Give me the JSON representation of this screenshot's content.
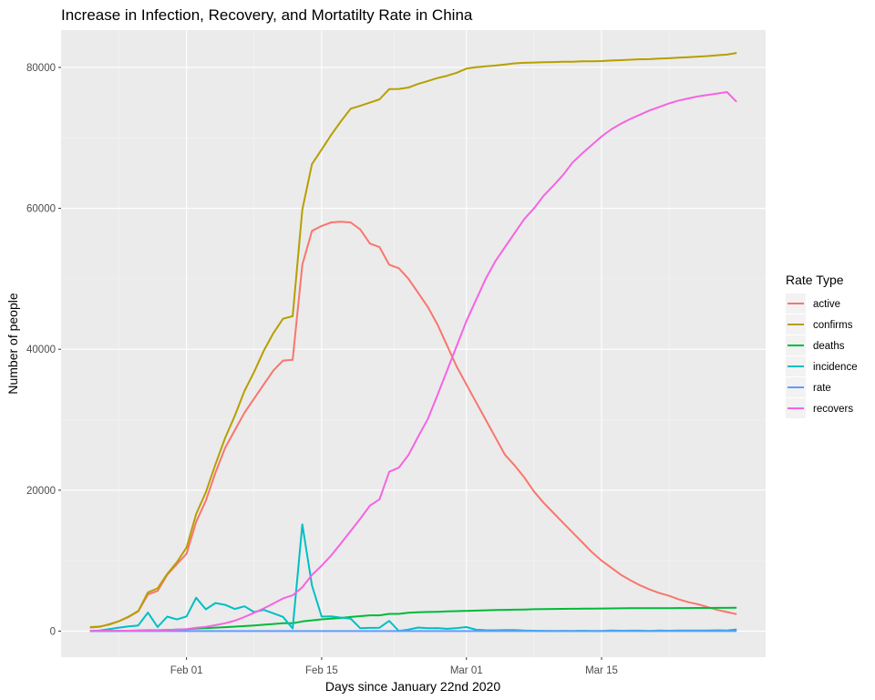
{
  "chart_data": {
    "type": "line",
    "title": "Increase in Infection, Recovery, and Mortatilty Rate in China",
    "xlabel": "Days since January 22nd 2020",
    "ylabel": "Number of people",
    "x_start_date": "2020-01-22",
    "x_ticks": [
      {
        "day": 10,
        "label": "Feb 01"
      },
      {
        "day": 24,
        "label": "Feb 15"
      },
      {
        "day": 39,
        "label": "Mar 01"
      },
      {
        "day": 53,
        "label": "Mar 15"
      }
    ],
    "xlim": [
      -3,
      70
    ],
    "y_ticks": [
      0,
      20000,
      40000,
      60000,
      80000
    ],
    "ylim": [
      -3700,
      85300
    ],
    "grid": true,
    "legend": {
      "title": "Rate Type",
      "position": "right",
      "entries": [
        "active",
        "confirms",
        "deaths",
        "incidence",
        "rate",
        "recovers"
      ]
    },
    "colors": {
      "active": "#F8766D",
      "confirms": "#B79F00",
      "deaths": "#00BA38",
      "incidence": "#00BFC4",
      "rate": "#619CFF",
      "recovers": "#F564E3",
      "panel": "#EBEBEB",
      "grid_major": "#FFFFFF",
      "grid_minor": "#F5F5F5"
    },
    "x": [
      0,
      1,
      2,
      3,
      4,
      5,
      6,
      7,
      8,
      9,
      10,
      11,
      12,
      13,
      14,
      15,
      16,
      17,
      18,
      19,
      20,
      21,
      22,
      23,
      24,
      25,
      26,
      27,
      28,
      29,
      30,
      31,
      32,
      33,
      34,
      35,
      36,
      37,
      38,
      39,
      40,
      41,
      42,
      43,
      44,
      45,
      46,
      47,
      48,
      49,
      50,
      51,
      52,
      53,
      54,
      55,
      56,
      57,
      58,
      59,
      60,
      61,
      62,
      63,
      64,
      65,
      66,
      67
    ],
    "series": [
      {
        "name": "active",
        "values": [
          503,
          595,
          1000,
          1400,
          2000,
          2800,
          5200,
          5700,
          8000,
          9500,
          11000,
          15500,
          18500,
          22500,
          26000,
          28500,
          31000,
          33000,
          35000,
          37000,
          38400,
          38500,
          52000,
          56800,
          57500,
          58000,
          58100,
          58000,
          57000,
          55000,
          54500,
          52000,
          51500,
          50000,
          48000,
          46000,
          43500,
          40500,
          37500,
          35000,
          32500,
          30000,
          27500,
          25000,
          23500,
          21800,
          19800,
          18200,
          16800,
          15400,
          14000,
          12600,
          11200,
          10000,
          9000,
          8000,
          7200,
          6500,
          5900,
          5400,
          5000,
          4500,
          4100,
          3800,
          3400,
          3000,
          2700,
          2400
        ]
      },
      {
        "name": "confirms",
        "values": [
          571,
          643,
          918,
          1405,
          2062,
          2863,
          5494,
          6070,
          8124,
          9783,
          11871,
          16607,
          19693,
          23680,
          27409,
          30553,
          34075,
          36778,
          39790,
          42306,
          44327,
          44699,
          59832,
          66292,
          68347,
          70446,
          72364,
          74139,
          74546,
          74999,
          75472,
          76922,
          76938,
          77152,
          77660,
          78065,
          78498,
          78824,
          79251,
          79826,
          80026,
          80151,
          80271,
          80422,
          80573,
          80652,
          80699,
          80735,
          80757,
          80793,
          80813,
          80859,
          80882,
          80903,
          80981,
          81035,
          81098,
          81163,
          81171,
          81249,
          81306,
          81382,
          81463,
          81538,
          81614,
          81735,
          81818,
          82048
        ]
      },
      {
        "name": "deaths",
        "values": [
          17,
          18,
          26,
          42,
          56,
          82,
          131,
          133,
          171,
          213,
          259,
          361,
          425,
          490,
          562,
          632,
          717,
          804,
          904,
          1011,
          1112,
          1117,
          1369,
          1521,
          1663,
          1766,
          1864,
          2003,
          2116,
          2238,
          2238,
          2443,
          2445,
          2595,
          2665,
          2717,
          2746,
          2790,
          2837,
          2872,
          2914,
          2947,
          2983,
          3015,
          3044,
          3072,
          3100,
          3123,
          3139,
          3161,
          3172,
          3180,
          3194,
          3204,
          3218,
          3231,
          3242,
          3249,
          3253,
          3259,
          3265,
          3270,
          3276,
          3282,
          3288,
          3294,
          3300,
          3305
        ]
      },
      {
        "name": "incidence",
        "values": [
          0,
          72,
          275,
          487,
          657,
          801,
          2631,
          576,
          2054,
          1659,
          2088,
          4736,
          3086,
          3987,
          3729,
          3144,
          3522,
          2703,
          3012,
          2516,
          2021,
          372,
          15133,
          6460,
          2055,
          2099,
          1918,
          1775,
          407,
          453,
          473,
          1450,
          16,
          214,
          508,
          405,
          433,
          326,
          427,
          575,
          200,
          125,
          120,
          151,
          151,
          79,
          47,
          36,
          22,
          36,
          20,
          46,
          23,
          21,
          78,
          54,
          63,
          65,
          8,
          78,
          57,
          76,
          81,
          75,
          76,
          121,
          83,
          230
        ]
      },
      {
        "name": "rate",
        "values": [
          3,
          3,
          3,
          3,
          3,
          3,
          3,
          3,
          3,
          3,
          3,
          3,
          3,
          3,
          3,
          3,
          3,
          3,
          3,
          3,
          3,
          3,
          3,
          3,
          3,
          3,
          3,
          3,
          3,
          3,
          3,
          3,
          3,
          3,
          3,
          3,
          3,
          3,
          3,
          3,
          3,
          3,
          3,
          3,
          3,
          3,
          3,
          3,
          3,
          3,
          3,
          3,
          3,
          3,
          3,
          3,
          3,
          3,
          3,
          3,
          3,
          3,
          3,
          3,
          3,
          3,
          3,
          3
        ]
      },
      {
        "name": "recovers",
        "values": [
          28,
          30,
          36,
          39,
          49,
          58,
          101,
          120,
          135,
          214,
          275,
          463,
          614,
          843,
          1115,
          1477,
          1999,
          2596,
          3219,
          3918,
          4636,
          5082,
          6217,
          7973,
          9294,
          10748,
          12455,
          14199,
          15952,
          17800,
          18700,
          22600,
          23200,
          25000,
          27600,
          30100,
          33500,
          37000,
          40500,
          44000,
          47000,
          50000,
          52500,
          54500,
          56500,
          58500,
          60000,
          61800,
          63200,
          64700,
          66500,
          67800,
          69000,
          70200,
          71200,
          72000,
          72700,
          73300,
          73900,
          74400,
          74900,
          75300,
          75600,
          75900,
          76100,
          76300,
          76500,
          75100
        ]
      }
    ]
  }
}
